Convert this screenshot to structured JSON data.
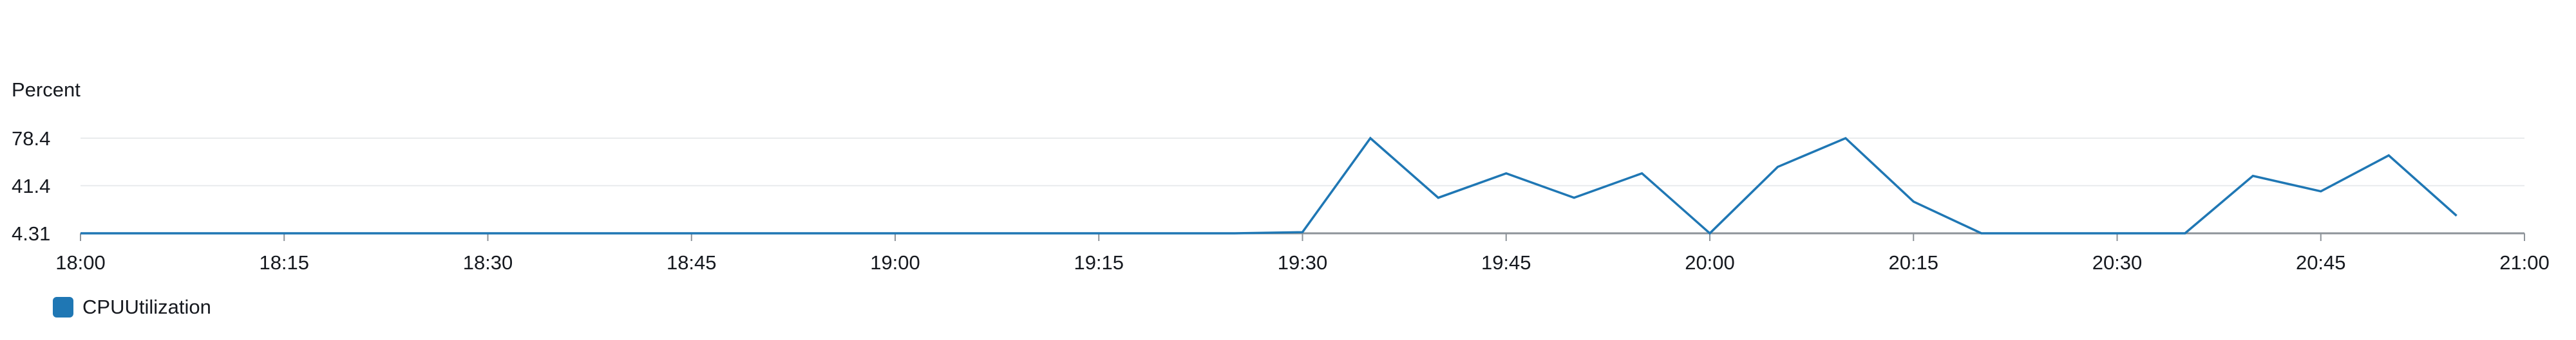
{
  "chart_data": {
    "type": "line",
    "title": "",
    "ylabel": "Percent",
    "xlabel": "",
    "x_ticks": [
      "18:00",
      "18:15",
      "18:30",
      "18:45",
      "19:00",
      "19:15",
      "19:30",
      "19:45",
      "20:00",
      "20:15",
      "20:30",
      "20:45",
      "21:00"
    ],
    "y_ticks": [
      "4.31",
      "41.4",
      "78.4"
    ],
    "xlim": [
      "18:00",
      "21:00"
    ],
    "ylim": [
      4.31,
      78.4
    ],
    "grid": true,
    "legend_position": "bottom-left",
    "series": [
      {
        "name": "CPUUtilization",
        "color": "#1f77b4",
        "x": [
          "18:00",
          "18:05",
          "18:10",
          "18:15",
          "18:20",
          "18:25",
          "18:30",
          "18:35",
          "18:40",
          "18:45",
          "18:50",
          "18:55",
          "19:00",
          "19:05",
          "19:10",
          "19:15",
          "19:20",
          "19:25",
          "19:30",
          "19:35",
          "19:40",
          "19:45",
          "19:50",
          "19:55",
          "20:00",
          "20:05",
          "20:10",
          "20:15",
          "20:20",
          "20:25",
          "20:30",
          "20:35",
          "20:40",
          "20:45",
          "20:50",
          "20:55"
        ],
        "values": [
          4.31,
          4.31,
          4.31,
          4.31,
          4.31,
          4.31,
          4.31,
          4.31,
          4.31,
          4.31,
          4.31,
          4.31,
          4.31,
          4.31,
          4.31,
          4.31,
          4.31,
          4.31,
          5.2,
          78.4,
          32.0,
          51.0,
          32.0,
          51.0,
          4.31,
          56.0,
          78.4,
          29.0,
          4.31,
          4.31,
          4.31,
          4.31,
          49.0,
          37.0,
          65.0,
          18.0
        ]
      }
    ]
  }
}
